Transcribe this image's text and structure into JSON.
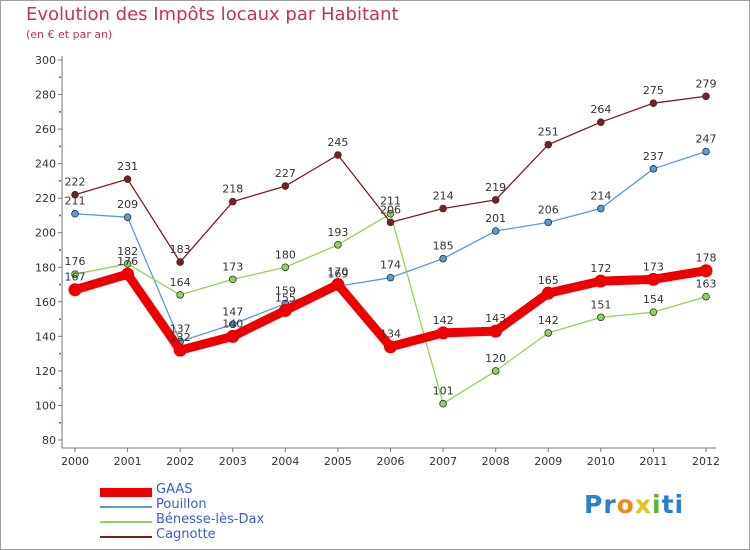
{
  "header": {
    "title": "Evolution des Impôts locaux par Habitant",
    "subtitle": "(en € et par an)"
  },
  "colors": {
    "title": "#c8305a",
    "GAAS": "#ee0000",
    "Pouillon": "#5a9ad6",
    "Benesse": "#8fd35a",
    "Cagnotte": "#7a1f1f"
  },
  "logo": {
    "text": "Proxiti",
    "letters": [
      "P",
      "r",
      "o",
      "x",
      "i",
      "t",
      "i"
    ],
    "letter_colors": [
      "#2a7fcf",
      "#2a7fcf",
      "#f08a1c",
      "#e8c21c",
      "#58b830",
      "#2a7fcf",
      "#2a7fcf"
    ]
  },
  "chart_data": {
    "type": "line",
    "title": "Evolution des Impôts locaux par Habitant",
    "subtitle": "(en € et par an)",
    "x": [
      "2000",
      "2001",
      "2002",
      "2003",
      "2004",
      "2005",
      "2006",
      "2007",
      "2008",
      "2009",
      "2010",
      "2011",
      "2012"
    ],
    "ylim": [
      80,
      300
    ],
    "yticks": [
      80,
      100,
      120,
      140,
      160,
      180,
      200,
      220,
      240,
      260,
      280,
      300
    ],
    "grid": false,
    "legend_position": "bottom-left",
    "series": [
      {
        "name": "GAAS",
        "color": "#ee0000",
        "values": [
          167,
          176,
          132,
          140,
          155,
          170,
          134,
          142,
          143,
          165,
          172,
          173,
          178
        ]
      },
      {
        "name": "Pouillon",
        "color": "#5a9ad6",
        "values": [
          211,
          209,
          137,
          147,
          159,
          169,
          174,
          185,
          201,
          206,
          214,
          237,
          247
        ]
      },
      {
        "name": "Bénesse-lès-Dax",
        "color": "#8fd35a",
        "values": [
          176,
          182,
          164,
          173,
          180,
          193,
          211,
          101,
          120,
          142,
          151,
          154,
          163
        ]
      },
      {
        "name": "Cagnotte",
        "color": "#7a1f1f",
        "values": [
          222,
          231,
          183,
          218,
          227,
          245,
          206,
          214,
          219,
          251,
          264,
          275,
          279
        ]
      }
    ]
  }
}
